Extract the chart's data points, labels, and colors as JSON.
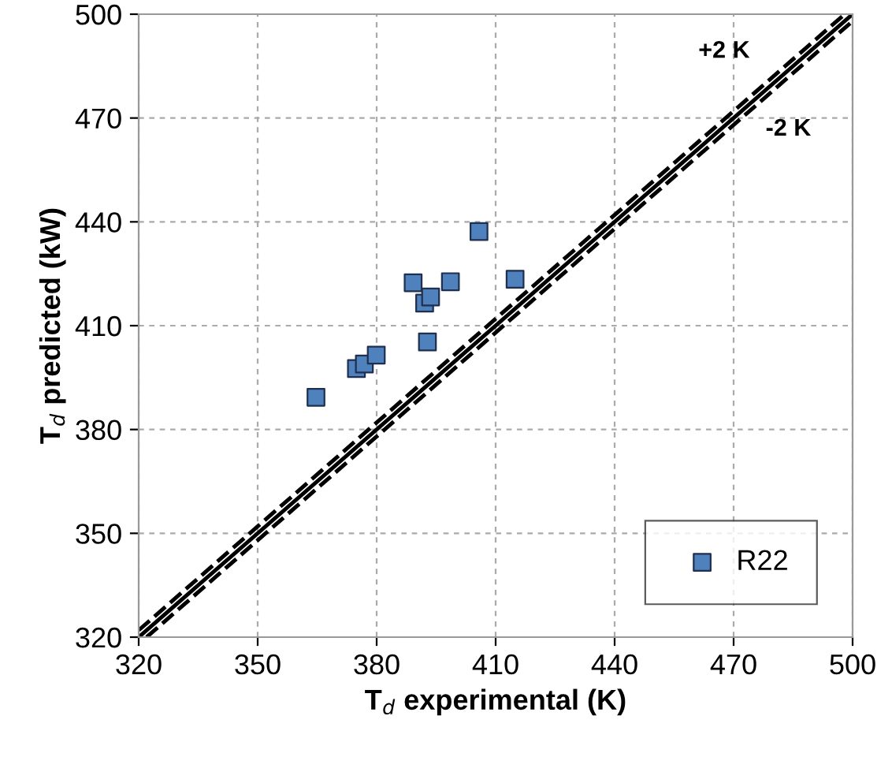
{
  "chart_data": {
    "type": "scatter",
    "xlabel": "T$_{d}$ experimental (K)",
    "ylabel": "T$_{d}$ predicted (kW)",
    "xlim": [
      320,
      500
    ],
    "ylim": [
      320,
      500
    ],
    "xticks": [
      320,
      350,
      380,
      410,
      440,
      470,
      500
    ],
    "yticks": [
      320,
      350,
      380,
      410,
      440,
      470,
      500
    ],
    "grid": true,
    "legend": "bottom right",
    "marker": "square",
    "series": [
      {
        "name": "R22",
        "color": "#4f81bd",
        "x": [
          364.7,
          374.9,
          376.9,
          379.9,
          389.2,
          392.1,
          393.6,
          392.8,
          398.6,
          405.8,
          414.9
        ],
        "values": [
          389.3,
          397.6,
          398.9,
          401.5,
          422.4,
          416.5,
          418.3,
          405.3,
          422.7,
          437.2,
          423.4
        ]
      },
      {
        "type": "line",
        "color": "#000000",
        "line_style": "solid",
        "marker": "none",
        "x": [
          320,
          500
        ],
        "values": [
          320,
          500
        ]
      },
      {
        "type": "line",
        "color": "#000000",
        "line_style": "dashed",
        "marker": "none",
        "x": [
          320,
          498
        ],
        "values": [
          322,
          500
        ]
      },
      {
        "type": "line",
        "color": "#000000",
        "line_style": "dashed",
        "marker": "none",
        "x": [
          322,
          500
        ],
        "values": [
          320,
          498
        ]
      }
    ],
    "annotations": [
      "+2 K",
      "-2 K"
    ]
  }
}
